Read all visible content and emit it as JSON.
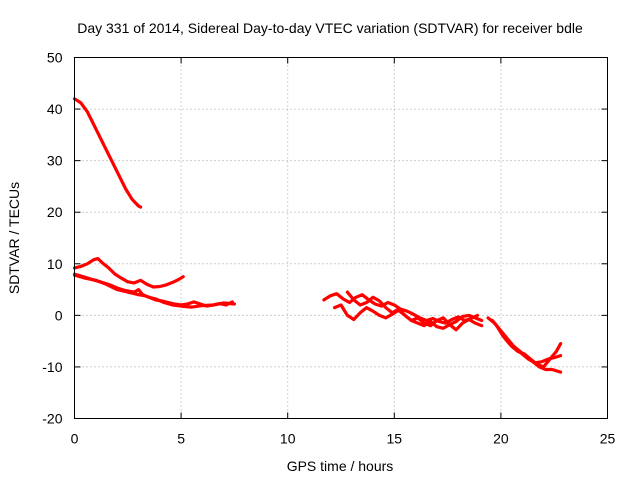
{
  "chart_data": {
    "type": "line",
    "title": "Day 331 of 2014, Sidereal Day-to-day VTEC variation (SDTVAR) for receiver bdle",
    "xlabel": "GPS time / hours",
    "ylabel": "SDTVAR / TECUs",
    "xlim": [
      0,
      25
    ],
    "ylim": [
      -20,
      50
    ],
    "xticks": [
      0,
      5,
      10,
      15,
      20,
      25
    ],
    "yticks": [
      -20,
      -10,
      0,
      10,
      20,
      30,
      40,
      50
    ],
    "xtick_labels": [
      "0",
      "5",
      "10",
      "15",
      "20",
      "25"
    ],
    "ytick_labels": [
      "-20",
      "-10",
      "0",
      "10",
      "20",
      "30",
      "40",
      "50"
    ],
    "grid": true,
    "legend": "none",
    "color": "#ff0000",
    "series": [
      {
        "name": "trace-1",
        "x": [
          0.0,
          0.3,
          0.6,
          0.9,
          1.2,
          1.5,
          1.8,
          2.1,
          2.4,
          2.7,
          3.0,
          3.1
        ],
        "y": [
          42.0,
          41.2,
          39.5,
          37.0,
          34.5,
          32.0,
          29.5,
          27.0,
          24.5,
          22.5,
          21.2,
          21.0
        ]
      },
      {
        "name": "trace-2",
        "x": [
          0.0,
          0.3,
          0.6,
          0.9,
          1.1,
          1.3,
          1.6,
          1.9,
          2.2,
          2.5,
          2.8,
          3.1,
          3.4,
          3.7,
          4.0,
          4.3,
          4.6,
          4.9,
          5.1
        ],
        "y": [
          9.2,
          9.5,
          10.0,
          10.8,
          11.0,
          10.2,
          9.2,
          8.0,
          7.2,
          6.5,
          6.3,
          6.8,
          6.0,
          5.5,
          5.6,
          5.9,
          6.4,
          7.0,
          7.5
        ]
      },
      {
        "name": "trace-3",
        "x": [
          0.0,
          0.4,
          0.8,
          1.2,
          1.6,
          2.0,
          2.4,
          2.8,
          3.0,
          3.2,
          3.5,
          3.8,
          4.1,
          4.4,
          4.7,
          5.0,
          5.3,
          5.6,
          5.9,
          6.2,
          6.5,
          6.8,
          7.1,
          7.4
        ],
        "y": [
          8.0,
          7.5,
          7.0,
          6.5,
          6.0,
          5.3,
          4.8,
          4.5,
          5.0,
          4.0,
          3.5,
          3.0,
          2.8,
          2.5,
          2.2,
          2.0,
          2.2,
          2.6,
          2.2,
          1.8,
          2.0,
          2.3,
          2.0,
          2.6
        ]
      },
      {
        "name": "trace-4",
        "x": [
          0.0,
          0.5,
          1.0,
          1.5,
          2.0,
          2.5,
          3.0,
          3.3,
          3.5,
          3.8,
          4.2,
          4.6,
          5.0,
          5.5,
          6.0,
          6.5,
          7.0,
          7.5
        ],
        "y": [
          7.8,
          7.2,
          6.8,
          6.0,
          5.0,
          4.5,
          4.0,
          3.8,
          3.5,
          3.2,
          2.5,
          2.0,
          1.8,
          1.6,
          1.9,
          2.0,
          2.4,
          2.2
        ]
      },
      {
        "name": "trace-5",
        "x": [
          11.7,
          12.0,
          12.3,
          12.6,
          12.9,
          13.2,
          13.5,
          13.8,
          14.1,
          14.4,
          14.7,
          15.0,
          15.3,
          15.6,
          15.9,
          16.2,
          16.5,
          16.8,
          17.1,
          17.4,
          17.7,
          18.0,
          18.3,
          18.6,
          18.9
        ],
        "y": [
          3.0,
          3.8,
          4.2,
          3.2,
          2.5,
          3.5,
          4.0,
          3.0,
          2.2,
          1.8,
          2.5,
          2.0,
          1.2,
          0.8,
          0.2,
          -0.5,
          -1.0,
          -0.6,
          -1.2,
          -1.5,
          -0.8,
          -0.3,
          -1.0,
          -0.6,
          0.0
        ]
      },
      {
        "name": "trace-6",
        "x": [
          12.2,
          12.5,
          12.8,
          13.1,
          13.4,
          13.7,
          14.0,
          14.3,
          14.6,
          14.9,
          15.2,
          15.5,
          15.8,
          16.1,
          16.4,
          16.7,
          17.0,
          17.3,
          17.6,
          17.9,
          18.2,
          18.5,
          18.8,
          19.1
        ],
        "y": [
          1.5,
          2.0,
          0.0,
          -0.8,
          0.5,
          1.5,
          0.8,
          0.0,
          -0.5,
          0.2,
          1.0,
          0.0,
          -1.0,
          -1.5,
          -2.0,
          -1.2,
          -2.2,
          -2.5,
          -1.8,
          -2.8,
          -1.5,
          -0.8,
          -1.5,
          -2.0
        ]
      },
      {
        "name": "trace-7",
        "x": [
          12.8,
          13.1,
          13.4,
          13.7,
          14.0,
          14.3,
          14.6,
          14.9,
          15.2,
          15.5,
          15.8,
          16.1,
          16.4,
          16.7,
          17.0,
          17.3,
          17.6,
          17.9,
          18.2,
          18.5,
          18.8,
          19.1
        ],
        "y": [
          4.5,
          3.0,
          2.0,
          2.5,
          3.5,
          2.8,
          1.5,
          0.5,
          1.2,
          0.0,
          -1.0,
          -0.5,
          -1.5,
          -2.0,
          -1.0,
          -0.5,
          -1.8,
          -1.2,
          -0.2,
          0.0,
          -0.5,
          -1.0
        ]
      },
      {
        "name": "trace-8",
        "x": [
          19.4,
          19.7,
          20.0,
          20.3,
          20.6,
          20.9,
          21.2,
          21.5,
          21.8,
          22.1,
          22.4,
          22.8
        ],
        "y": [
          -0.5,
          -1.5,
          -3.0,
          -4.5,
          -6.0,
          -7.0,
          -8.0,
          -9.0,
          -10.0,
          -10.5,
          -10.5,
          -11.0
        ]
      },
      {
        "name": "trace-9",
        "x": [
          19.6,
          19.9,
          20.2,
          20.5,
          20.8,
          21.1,
          21.4,
          21.7,
          22.0,
          22.3,
          22.6,
          22.8
        ],
        "y": [
          -1.0,
          -2.5,
          -4.5,
          -6.0,
          -7.0,
          -7.5,
          -8.5,
          -9.5,
          -10.0,
          -8.5,
          -7.0,
          -5.5
        ]
      },
      {
        "name": "trace-10",
        "x": [
          19.8,
          20.1,
          20.4,
          20.7,
          21.0,
          21.3,
          21.6,
          21.9,
          22.2,
          22.5,
          22.8
        ],
        "y": [
          -2.0,
          -4.0,
          -5.5,
          -6.5,
          -7.5,
          -8.5,
          -9.2,
          -9.0,
          -8.5,
          -8.2,
          -7.8
        ]
      }
    ]
  }
}
